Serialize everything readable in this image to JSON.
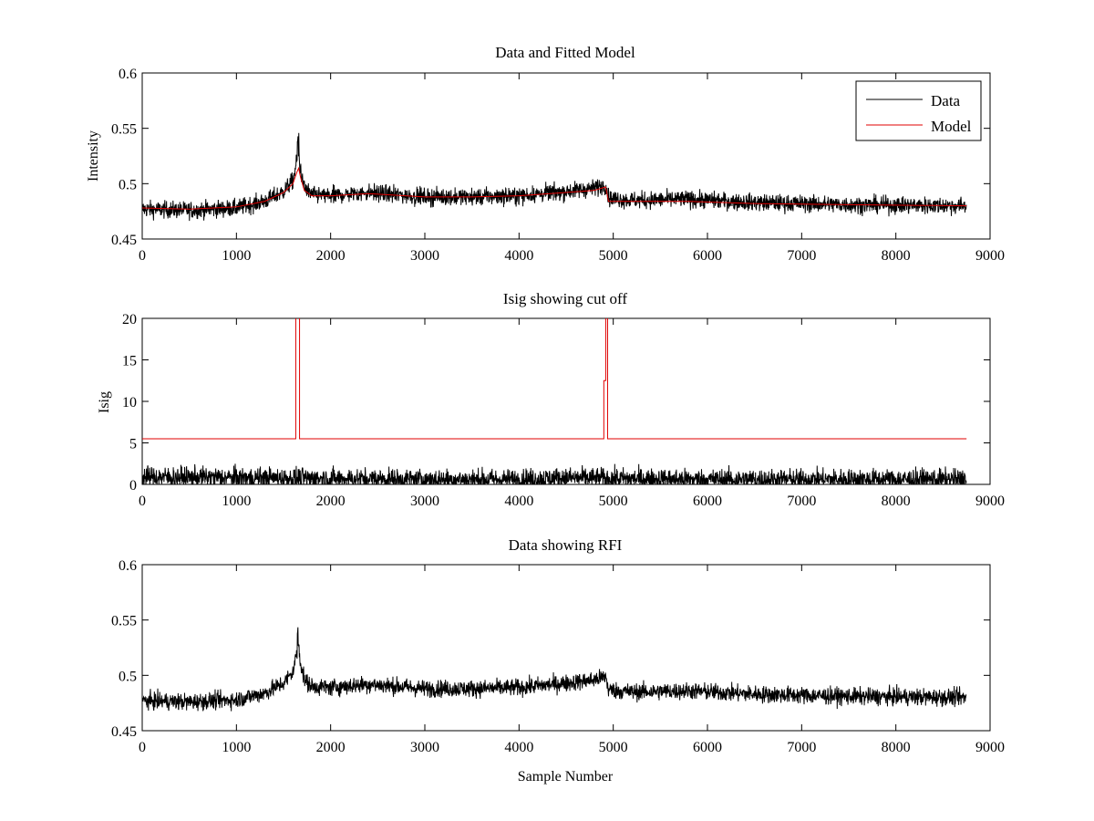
{
  "figure": {
    "background": "#ffffff",
    "xlabel": "Sample Number"
  },
  "colors": {
    "data": "#000000",
    "model": "#e00000",
    "axes": "#000000"
  },
  "chart_data": [
    {
      "type": "line",
      "title": "Data and Fitted Model",
      "xlabel": "",
      "ylabel": "Intensity",
      "xlim": [
        0,
        9000
      ],
      "ylim": [
        0.45,
        0.6
      ],
      "xticks": [
        0,
        1000,
        2000,
        3000,
        4000,
        5000,
        6000,
        7000,
        8000,
        9000
      ],
      "yticks": [
        0.45,
        0.5,
        0.55,
        0.6
      ],
      "ytick_labels": [
        "0.45",
        "0.5",
        "0.55",
        "0.6"
      ],
      "legend": {
        "position": "top-right",
        "entries": [
          "Data",
          "Model"
        ]
      },
      "series": [
        {
          "name": "Data",
          "color": "#000000",
          "noise": 0.0055,
          "x": [
            0,
            500,
            1000,
            1300,
            1500,
            1600,
            1640,
            1660,
            1680,
            1720,
            1800,
            2000,
            2400,
            3000,
            3500,
            4000,
            4500,
            4800,
            4920,
            4950,
            5200,
            5800,
            6500,
            7500,
            8750
          ],
          "y": [
            0.477,
            0.476,
            0.478,
            0.484,
            0.493,
            0.503,
            0.52,
            0.528,
            0.512,
            0.496,
            0.49,
            0.489,
            0.492,
            0.488,
            0.488,
            0.489,
            0.493,
            0.496,
            0.499,
            0.487,
            0.485,
            0.486,
            0.483,
            0.481,
            0.48
          ]
        },
        {
          "name": "Model",
          "color": "#e00000",
          "x": [
            0,
            500,
            1000,
            1300,
            1500,
            1600,
            1640,
            1660,
            1680,
            1720,
            1800,
            2000,
            2400,
            3000,
            3500,
            4000,
            4500,
            4800,
            4920,
            4950,
            5200,
            5800,
            6500,
            7500,
            8750
          ],
          "y": [
            0.478,
            0.477,
            0.479,
            0.484,
            0.492,
            0.5,
            0.51,
            0.514,
            0.506,
            0.494,
            0.489,
            0.489,
            0.491,
            0.488,
            0.488,
            0.489,
            0.492,
            0.494,
            0.497,
            0.484,
            0.484,
            0.484,
            0.482,
            0.481,
            0.48
          ]
        }
      ]
    },
    {
      "type": "line",
      "title": "Isig showing cut off",
      "xlabel": "",
      "ylabel": "Isig",
      "xlim": [
        0,
        9000
      ],
      "ylim": [
        0,
        20
      ],
      "xticks": [
        0,
        1000,
        2000,
        3000,
        4000,
        5000,
        6000,
        7000,
        8000,
        9000
      ],
      "yticks": [
        0,
        5,
        10,
        15,
        20
      ],
      "ytick_labels": [
        "0",
        "5",
        "10",
        "15",
        "20"
      ],
      "series": [
        {
          "color": "#000000",
          "noise": 0.9,
          "x": [
            0,
            1000,
            2000,
            3000,
            4000,
            4500,
            5000,
            6000,
            7000,
            8750
          ],
          "y": [
            0.9,
            0.8,
            0.7,
            0.6,
            0.6,
            0.8,
            0.7,
            0.6,
            0.6,
            0.6
          ]
        },
        {
          "color": "#e00000",
          "x": [
            0,
            1630,
            1630,
            1670,
            1670,
            4900,
            4900,
            4920,
            4920,
            4940,
            4940,
            8750
          ],
          "y": [
            5.5,
            5.5,
            20.5,
            20.5,
            5.5,
            5.5,
            12.5,
            12.5,
            20.5,
            20.5,
            5.5,
            5.5
          ]
        }
      ]
    },
    {
      "type": "line",
      "title": "Data showing RFI",
      "xlabel": "Sample Number",
      "ylabel": "",
      "xlim": [
        0,
        9000
      ],
      "ylim": [
        0.45,
        0.6
      ],
      "xticks": [
        0,
        1000,
        2000,
        3000,
        4000,
        5000,
        6000,
        7000,
        8000,
        9000
      ],
      "yticks": [
        0.45,
        0.5,
        0.55,
        0.6
      ],
      "ytick_labels": [
        "0.45",
        "0.5",
        "0.55",
        "0.6"
      ],
      "series": [
        {
          "color": "#000000",
          "noise": 0.0055,
          "x": [
            0,
            500,
            1000,
            1300,
            1500,
            1600,
            1640,
            1660,
            1680,
            1720,
            1800,
            2000,
            2400,
            3000,
            3500,
            4000,
            4500,
            4800,
            4920,
            4950,
            5200,
            5800,
            6500,
            7500,
            8750
          ],
          "y": [
            0.477,
            0.476,
            0.478,
            0.484,
            0.493,
            0.503,
            0.52,
            0.528,
            0.512,
            0.496,
            0.49,
            0.489,
            0.492,
            0.488,
            0.488,
            0.489,
            0.493,
            0.496,
            0.499,
            0.487,
            0.485,
            0.486,
            0.483,
            0.481,
            0.48
          ]
        }
      ]
    }
  ]
}
